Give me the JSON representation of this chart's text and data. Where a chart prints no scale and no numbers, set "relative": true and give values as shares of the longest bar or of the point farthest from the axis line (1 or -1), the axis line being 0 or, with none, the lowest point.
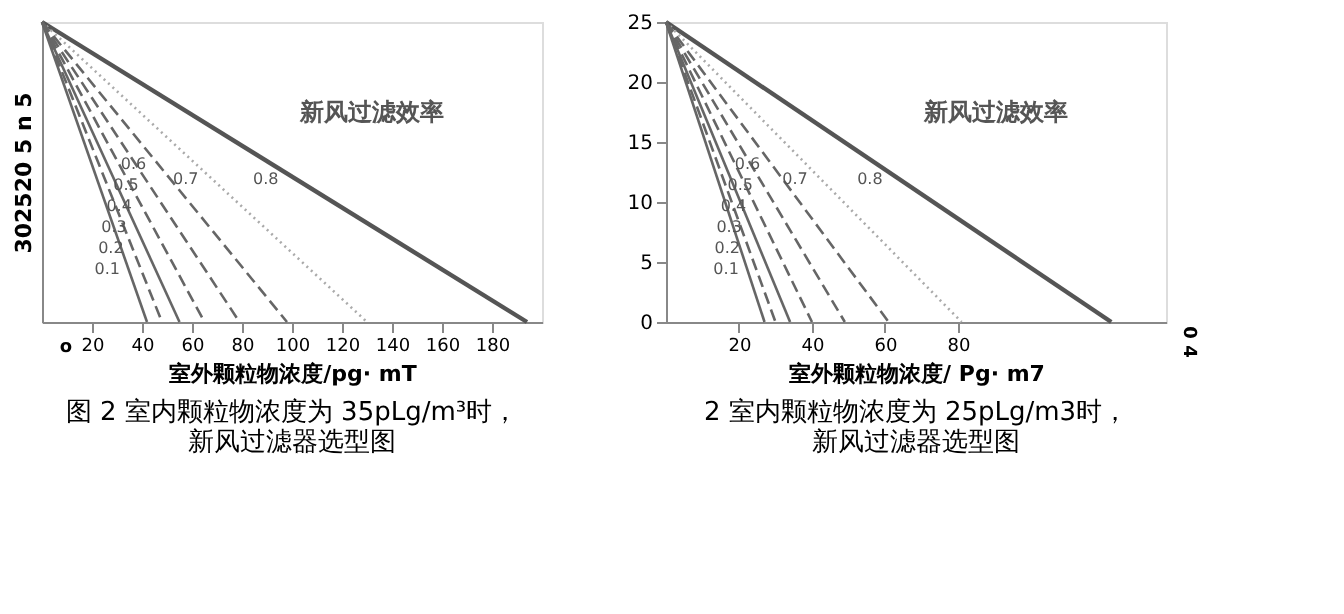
{
  "chart_data": [
    {
      "type": "line",
      "relative": true,
      "legend_title": "新风过滤效率",
      "xlabel": "室外颗粒物浓度/pg· mT",
      "ylabel": "302520   5 n 5",
      "xlim": [
        0,
        200
      ],
      "xticks": [
        20,
        40,
        60,
        80,
        100,
        120,
        140,
        160,
        180
      ],
      "grid": false,
      "annotations": [
        "o",
        "图 2 室内颗粒物浓度为 35pLg/m³时，",
        "新风过滤器选型图"
      ],
      "series": [
        {
          "name": "0.8",
          "color": "#555555",
          "line_style": "solid",
          "x": [
            0,
            194
          ],
          "values": [
            1,
            0
          ]
        },
        {
          "name": "0.7",
          "color": "#aaaaaa",
          "line_style": "dotted",
          "x": [
            0,
            130
          ],
          "values": [
            1,
            0
          ]
        },
        {
          "name": "0.6",
          "color": "#666666",
          "line_style": "dashed",
          "x": [
            0,
            98
          ],
          "values": [
            1,
            0
          ]
        },
        {
          "name": "0.5",
          "color": "#666666",
          "line_style": "dashed",
          "x": [
            0,
            79
          ],
          "values": [
            1,
            0
          ]
        },
        {
          "name": "0.4",
          "color": "#666666",
          "line_style": "dashed",
          "x": [
            0,
            65
          ],
          "values": [
            1,
            0
          ]
        },
        {
          "name": "0.3",
          "color": "#666666",
          "line_style": "solid",
          "x": [
            0,
            55
          ],
          "values": [
            1,
            0
          ]
        },
        {
          "name": "0.2",
          "color": "#666666",
          "line_style": "dashed",
          "x": [
            0,
            48
          ],
          "values": [
            1,
            0
          ]
        },
        {
          "name": "0.1",
          "color": "#666666",
          "line_style": "solid",
          "x": [
            0,
            42
          ],
          "values": [
            1,
            0
          ]
        }
      ]
    },
    {
      "type": "line",
      "legend_title": "新风过滤效率",
      "xlabel": "室外颗粒物浓度/ Pg· m7",
      "xlim": [
        0,
        137
      ],
      "ylim": [
        0,
        25
      ],
      "xticks": [
        20,
        40,
        60,
        80
      ],
      "yticks": [
        0,
        5,
        10,
        15,
        20,
        25
      ],
      "grid": false,
      "annotations": [
        "0 4",
        "2 室内颗粒物浓度为 25pLg/m3时，",
        "新风过滤器选型图"
      ],
      "series": [
        {
          "name": "0.8",
          "color": "#555555",
          "line_style": "solid",
          "x": [
            0,
            122
          ],
          "values": [
            25,
            0
          ]
        },
        {
          "name": "0.7",
          "color": "#aaaaaa",
          "line_style": "dotted",
          "x": [
            0,
            81
          ],
          "values": [
            25,
            0
          ]
        },
        {
          "name": "0.6",
          "color": "#666666",
          "line_style": "dashed",
          "x": [
            0,
            61
          ],
          "values": [
            25,
            0
          ]
        },
        {
          "name": "0.5",
          "color": "#666666",
          "line_style": "dashed",
          "x": [
            0,
            49
          ],
          "values": [
            25,
            0
          ]
        },
        {
          "name": "0.4",
          "color": "#666666",
          "line_style": "dashed",
          "x": [
            0,
            40
          ],
          "values": [
            25,
            0
          ]
        },
        {
          "name": "0.3",
          "color": "#666666",
          "line_style": "solid",
          "x": [
            0,
            34
          ],
          "values": [
            25,
            0
          ]
        },
        {
          "name": "0.2",
          "color": "#666666",
          "line_style": "dashed",
          "x": [
            0,
            30
          ],
          "values": [
            25,
            0
          ]
        },
        {
          "name": "0.1",
          "color": "#666666",
          "line_style": "solid",
          "x": [
            0,
            27
          ],
          "values": [
            25,
            0
          ]
        }
      ]
    }
  ]
}
